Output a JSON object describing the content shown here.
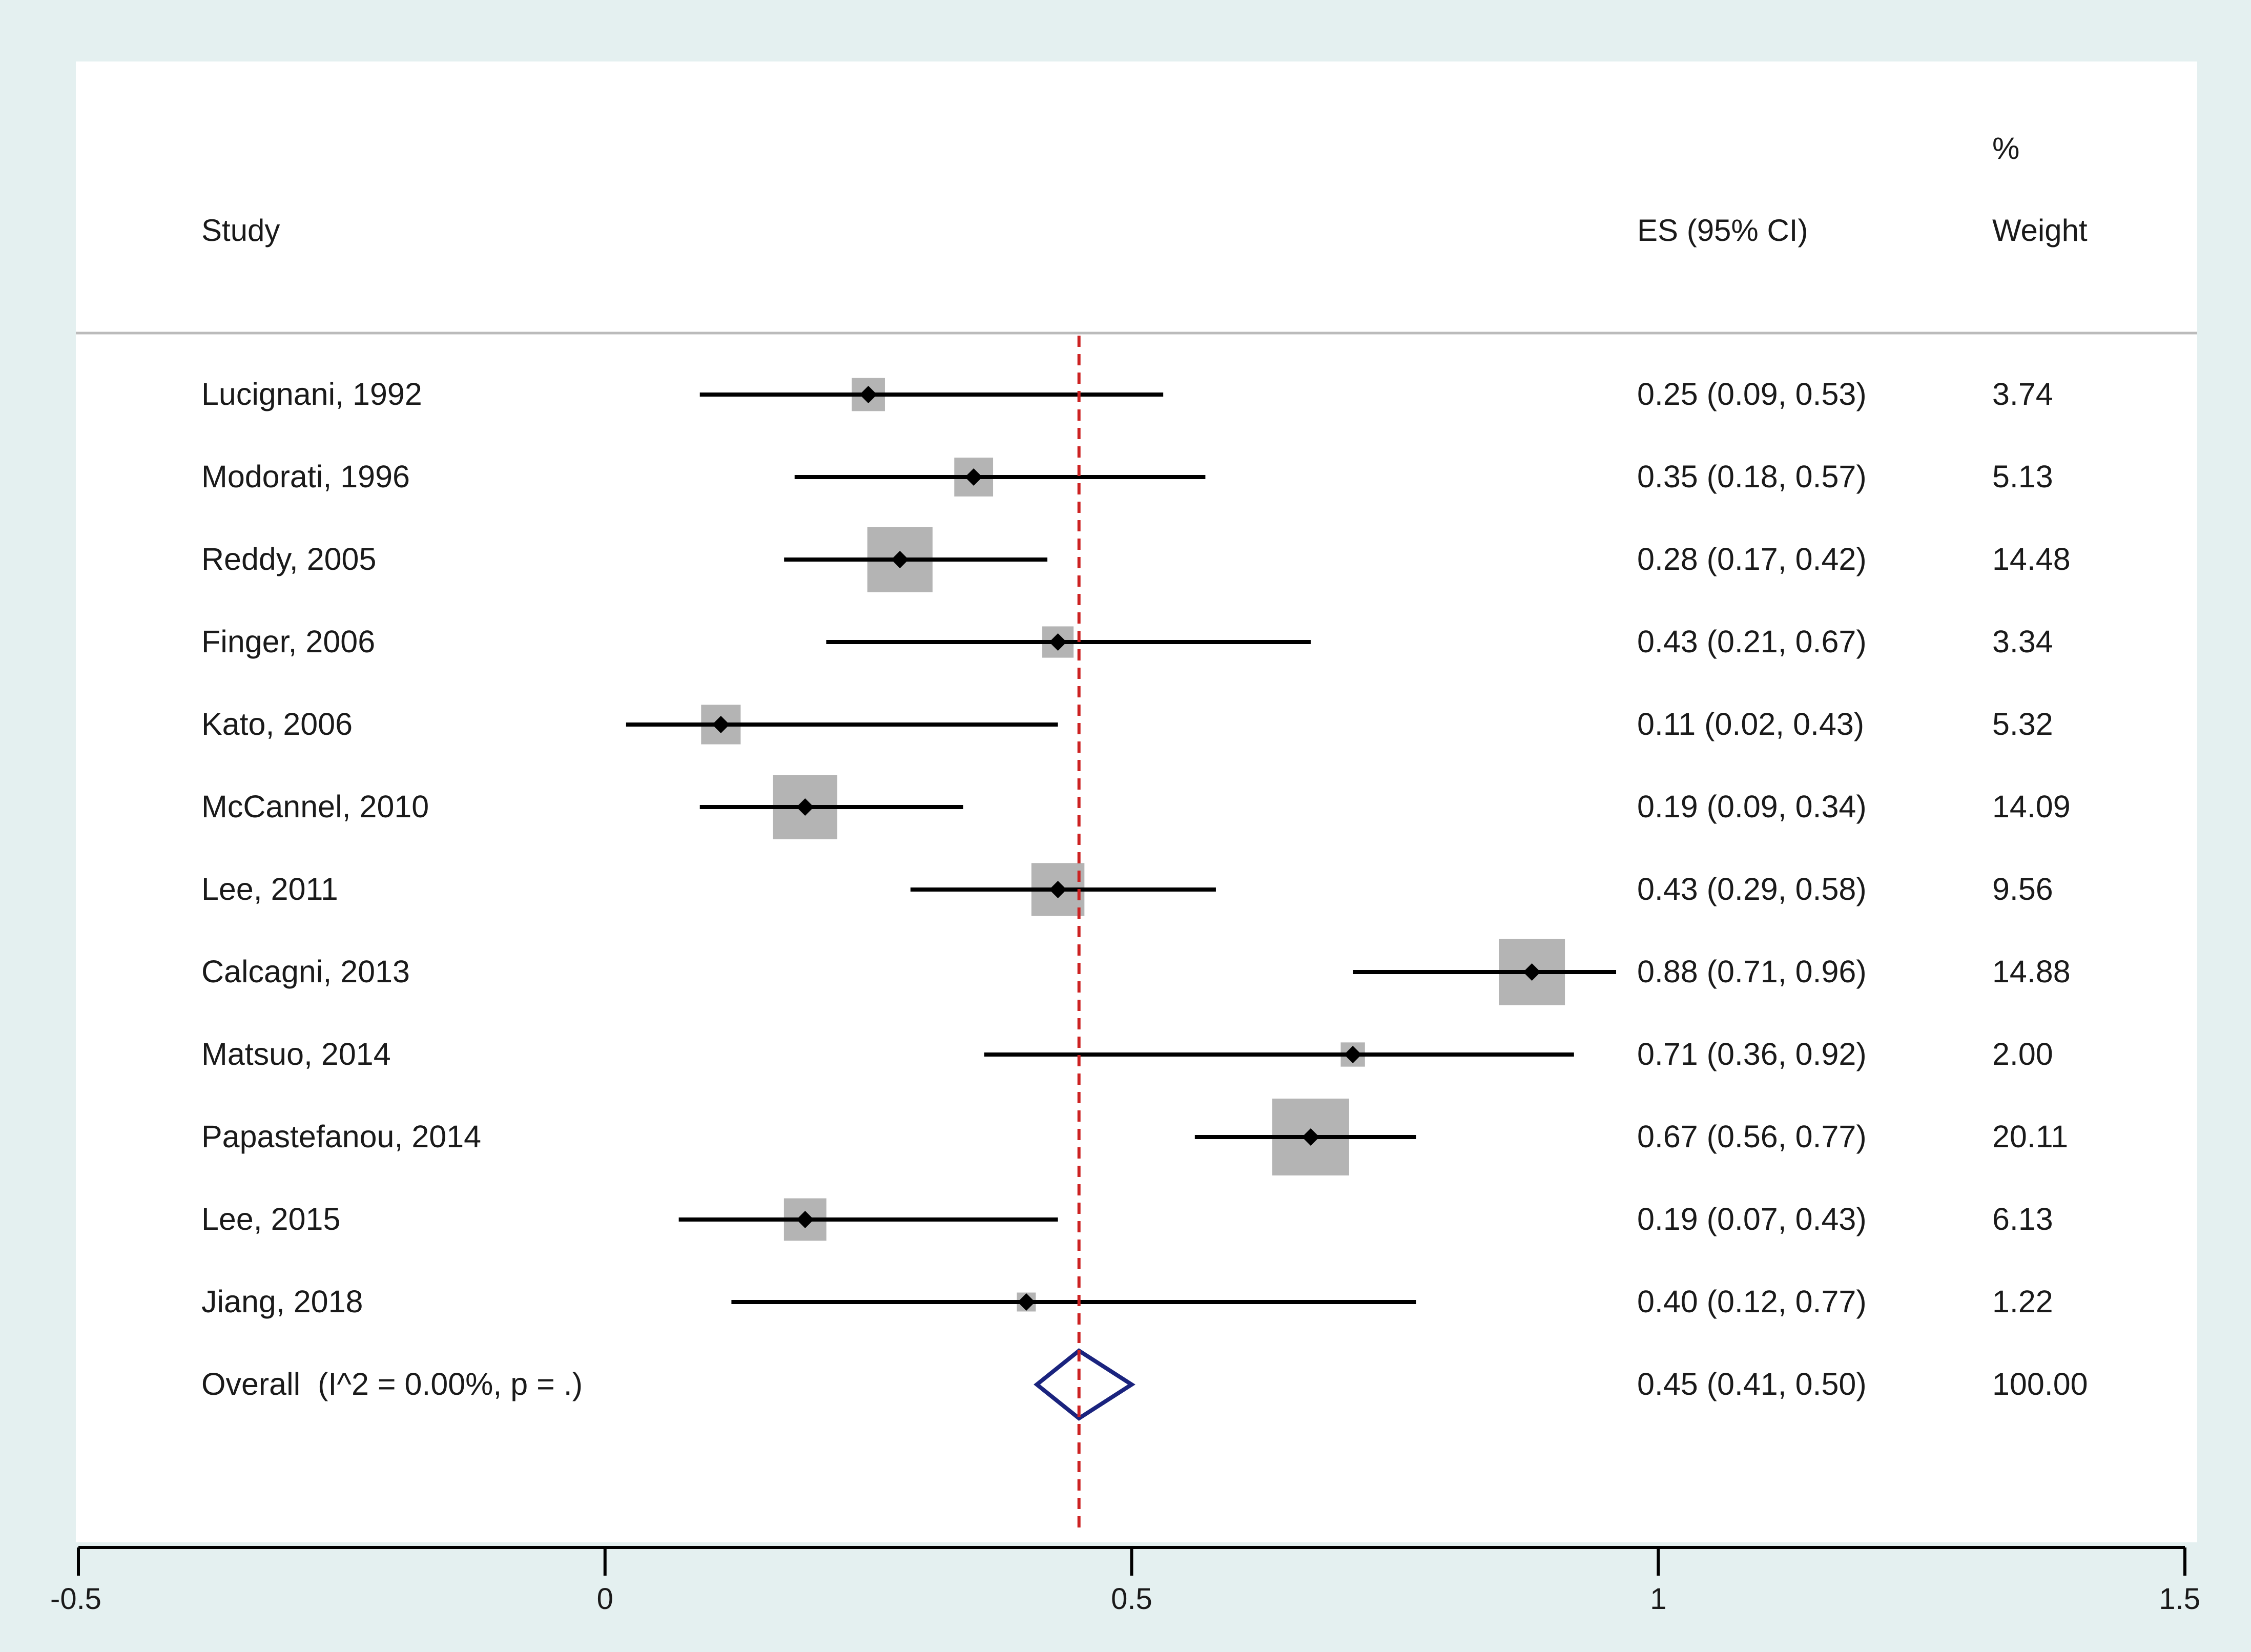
{
  "chart_data": {
    "type": "forest",
    "headers": {
      "study": "Study",
      "es": "ES (95% CI)",
      "weight_top": "%",
      "weight": "Weight"
    },
    "studies": [
      {
        "label": "Lucignani, 1992",
        "es": 0.25,
        "lo": 0.09,
        "hi": 0.53,
        "es_text": "0.25 (0.09, 0.53)",
        "weight": "3.74"
      },
      {
        "label": "Modorati, 1996",
        "es": 0.35,
        "lo": 0.18,
        "hi": 0.57,
        "es_text": "0.35 (0.18, 0.57)",
        "weight": "5.13"
      },
      {
        "label": "Reddy, 2005",
        "es": 0.28,
        "lo": 0.17,
        "hi": 0.42,
        "es_text": "0.28 (0.17, 0.42)",
        "weight": "14.48"
      },
      {
        "label": "Finger, 2006",
        "es": 0.43,
        "lo": 0.21,
        "hi": 0.67,
        "es_text": "0.43 (0.21, 0.67)",
        "weight": "3.34"
      },
      {
        "label": "Kato, 2006",
        "es": 0.11,
        "lo": 0.02,
        "hi": 0.43,
        "es_text": "0.11 (0.02, 0.43)",
        "weight": "5.32"
      },
      {
        "label": "McCannel, 2010",
        "es": 0.19,
        "lo": 0.09,
        "hi": 0.34,
        "es_text": "0.19 (0.09, 0.34)",
        "weight": "14.09"
      },
      {
        "label": "Lee, 2011",
        "es": 0.43,
        "lo": 0.29,
        "hi": 0.58,
        "es_text": "0.43 (0.29, 0.58)",
        "weight": "9.56"
      },
      {
        "label": "Calcagni, 2013",
        "es": 0.88,
        "lo": 0.71,
        "hi": 0.96,
        "es_text": "0.88 (0.71, 0.96)",
        "weight": "14.88"
      },
      {
        "label": "Matsuo, 2014",
        "es": 0.71,
        "lo": 0.36,
        "hi": 0.92,
        "es_text": "0.71 (0.36, 0.92)",
        "weight": "2.00"
      },
      {
        "label": "Papastefanou, 2014",
        "es": 0.67,
        "lo": 0.56,
        "hi": 0.77,
        "es_text": "0.67 (0.56, 0.77)",
        "weight": "20.11"
      },
      {
        "label": "Lee, 2015",
        "es": 0.19,
        "lo": 0.07,
        "hi": 0.43,
        "es_text": "0.19 (0.07, 0.43)",
        "weight": "6.13"
      },
      {
        "label": "Jiang, 2018",
        "es": 0.4,
        "lo": 0.12,
        "hi": 0.77,
        "es_text": "0.40 (0.12, 0.77)",
        "weight": "1.22"
      }
    ],
    "overall": {
      "label": "Overall  (I^2 = 0.00%, p = .)",
      "es": 0.45,
      "lo": 0.41,
      "hi": 0.5,
      "es_text": "0.45 (0.41, 0.50)",
      "weight": "100.00"
    },
    "reference_line": 0.45,
    "xlim": [
      -0.5,
      1.5
    ],
    "xticks": [
      -0.5,
      0,
      0.5,
      1,
      1.5
    ],
    "xtick_labels": [
      "-0.5",
      "0",
      "0.5",
      "1",
      "1.5"
    ],
    "colors": {
      "frame_bg": "#e4f0f0",
      "plot_bg": "#ffffff",
      "weight_box": "#b4b4b4",
      "ci_line": "#000000",
      "diamond": "#1a237e",
      "ref_line": "#cc2222",
      "separator": "#bbbbbb"
    }
  }
}
